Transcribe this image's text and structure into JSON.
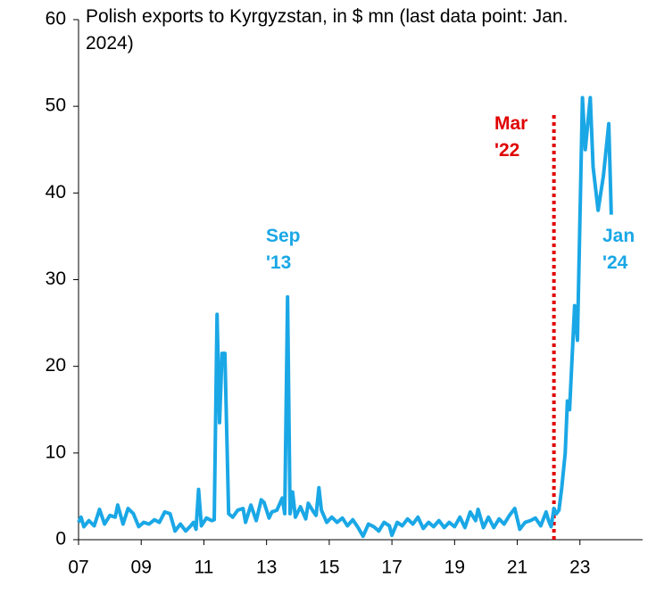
{
  "chart_data": {
    "type": "line",
    "title": "Polish exports to Kyrgyzstan, in $ mn (last data point: Jan. 2024)",
    "annotations": [
      "Sep '13",
      "Mar '22",
      "Jan '24"
    ],
    "reference_line": {
      "x": 2022.17,
      "y": [
        0,
        49
      ],
      "color": "#e00000"
    },
    "xlim": [
      2007,
      2025
    ],
    "xticks": [
      {
        "value": 2007,
        "label": "07"
      },
      {
        "value": 2009,
        "label": "09"
      },
      {
        "value": 2011,
        "label": "11"
      },
      {
        "value": 2013,
        "label": "13"
      },
      {
        "value": 2015,
        "label": "15"
      },
      {
        "value": 2017,
        "label": "17"
      },
      {
        "value": 2019,
        "label": "19"
      },
      {
        "value": 2021,
        "label": "21"
      },
      {
        "value": 2023,
        "label": "23"
      }
    ],
    "ylim": [
      0,
      60
    ],
    "yticks": [
      0,
      10,
      20,
      30,
      40,
      50,
      60
    ],
    "x": [
      2007.0,
      2007.08,
      2007.17,
      2007.33,
      2007.5,
      2007.67,
      2007.83,
      2008.0,
      2008.17,
      2008.25,
      2008.42,
      2008.58,
      2008.75,
      2008.92,
      2009.08,
      2009.25,
      2009.42,
      2009.58,
      2009.75,
      2009.92,
      2010.08,
      2010.25,
      2010.42,
      2010.58,
      2010.67,
      2010.75,
      2010.83,
      2010.92,
      2011.08,
      2011.25,
      2011.33,
      2011.42,
      2011.5,
      2011.58,
      2011.67,
      2011.79,
      2011.92,
      2012.08,
      2012.25,
      2012.33,
      2012.5,
      2012.67,
      2012.83,
      2012.92,
      2013.08,
      2013.17,
      2013.33,
      2013.5,
      2013.58,
      2013.67,
      2013.75,
      2013.83,
      2013.92,
      2014.08,
      2014.25,
      2014.33,
      2014.5,
      2014.58,
      2014.67,
      2014.75,
      2014.92,
      2015.08,
      2015.25,
      2015.42,
      2015.58,
      2015.75,
      2015.92,
      2016.08,
      2016.25,
      2016.42,
      2016.58,
      2016.75,
      2016.92,
      2017.0,
      2017.17,
      2017.33,
      2017.5,
      2017.67,
      2017.83,
      2018.0,
      2018.17,
      2018.33,
      2018.5,
      2018.67,
      2018.83,
      2019.0,
      2019.17,
      2019.33,
      2019.5,
      2019.67,
      2019.75,
      2019.92,
      2020.08,
      2020.25,
      2020.42,
      2020.58,
      2020.75,
      2020.92,
      2021.08,
      2021.25,
      2021.42,
      2021.58,
      2021.75,
      2021.92,
      2022.0,
      2022.08,
      2022.17,
      2022.25,
      2022.33,
      2022.42,
      2022.53,
      2022.6,
      2022.67,
      2022.83,
      2022.92,
      2023.08,
      2023.17,
      2023.33,
      2023.42,
      2023.58,
      2023.75,
      2023.92,
      2024.0
    ],
    "series": [
      {
        "name": "Polish exports to Kyrgyzstan",
        "color": "#1aa7e6",
        "values": [
          2.0,
          2.6,
          1.5,
          2.2,
          1.6,
          3.5,
          1.8,
          2.8,
          2.6,
          4.0,
          1.8,
          3.6,
          3.0,
          1.5,
          2.0,
          1.8,
          2.3,
          2.0,
          3.2,
          3.0,
          1.0,
          1.8,
          1.0,
          1.6,
          2.0,
          1.2,
          5.8,
          1.6,
          2.5,
          2.2,
          2.3,
          26,
          13.5,
          21.5,
          21.5,
          3.0,
          2.6,
          3.4,
          3.6,
          2.0,
          4.0,
          2.2,
          4.6,
          4.3,
          2.5,
          3.2,
          3.4,
          4.8,
          3.0,
          28,
          3.0,
          5.5,
          2.6,
          3.8,
          2.4,
          4.2,
          3.2,
          2.8,
          6.0,
          3.4,
          2.0,
          2.6,
          2.0,
          2.5,
          1.6,
          2.3,
          1.4,
          0.4,
          1.8,
          1.5,
          1.0,
          2.0,
          1.6,
          0.5,
          2.0,
          1.6,
          2.4,
          1.8,
          2.6,
          1.3,
          2.0,
          1.5,
          2.2,
          1.4,
          2.0,
          1.5,
          2.6,
          1.4,
          3.2,
          2.2,
          3.5,
          1.4,
          2.6,
          1.4,
          2.4,
          1.8,
          2.8,
          3.6,
          1.2,
          2.0,
          2.2,
          2.5,
          1.6,
          3.2,
          2.2,
          1.5,
          3.6,
          3.0,
          3.4,
          6.0,
          10,
          16,
          15,
          27,
          23,
          51,
          45,
          51,
          43,
          38,
          42,
          48,
          37.5
        ]
      }
    ]
  }
}
